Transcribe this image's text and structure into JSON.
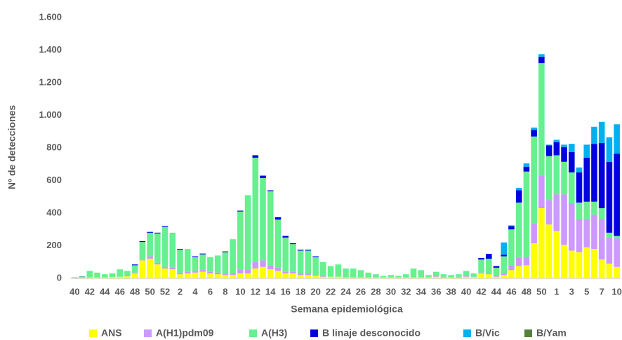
{
  "chart_data": {
    "type": "stacked_bar",
    "x_label": "Semana epidemiológica",
    "y_label": "Nº de detecciones",
    "categories": [
      "40",
      null,
      "42",
      null,
      "44",
      null,
      "46",
      null,
      "48",
      null,
      "50",
      null,
      "52",
      null,
      "2",
      null,
      "4",
      null,
      "6",
      null,
      "8",
      null,
      "10",
      null,
      "12",
      null,
      "14",
      null,
      "16",
      null,
      "18",
      null,
      "20",
      null,
      "22",
      null,
      "24",
      null,
      "26",
      null,
      "28",
      null,
      "30",
      null,
      "32",
      null,
      "34",
      null,
      "36",
      null,
      "38",
      null,
      "40",
      null,
      "42",
      null,
      "44",
      null,
      "46",
      null,
      "48",
      null,
      "50",
      null,
      "1",
      null,
      "3",
      null,
      "5",
      null,
      "7",
      null,
      "10"
    ],
    "series": [
      {
        "name": "ANS",
        "color": "#ffff00",
        "values": [
          2,
          3,
          5,
          5,
          5,
          8,
          10,
          12,
          30,
          110,
          120,
          85,
          60,
          55,
          25,
          30,
          35,
          40,
          30,
          25,
          20,
          20,
          30,
          30,
          60,
          70,
          55,
          45,
          30,
          30,
          20,
          20,
          15,
          10,
          10,
          10,
          5,
          5,
          5,
          5,
          5,
          5,
          5,
          5,
          5,
          5,
          5,
          5,
          10,
          5,
          5,
          5,
          10,
          8,
          30,
          25,
          10,
          20,
          50,
          75,
          80,
          215,
          430,
          330,
          290,
          205,
          170,
          160,
          190,
          180,
          115,
          90,
          70
        ]
      },
      {
        "name": "A(H1)pdm09",
        "color": "#cc99ff",
        "values": [
          0,
          0,
          0,
          0,
          0,
          0,
          0,
          0,
          5,
          5,
          15,
          10,
          10,
          10,
          10,
          10,
          10,
          15,
          10,
          10,
          10,
          10,
          25,
          25,
          40,
          40,
          25,
          20,
          10,
          10,
          10,
          10,
          5,
          5,
          0,
          0,
          0,
          0,
          0,
          0,
          0,
          0,
          0,
          0,
          0,
          0,
          0,
          0,
          5,
          5,
          0,
          5,
          5,
          2,
          5,
          5,
          5,
          10,
          30,
          50,
          50,
          120,
          200,
          150,
          225,
          310,
          290,
          205,
          175,
          210,
          250,
          160,
          175
        ]
      },
      {
        "name": "A(H3)",
        "color": "#66f08f",
        "values": [
          5,
          8,
          40,
          30,
          20,
          22,
          45,
          33,
          45,
          108,
          145,
          180,
          245,
          215,
          140,
          140,
          85,
          92,
          90,
          105,
          130,
          210,
          355,
          455,
          640,
          505,
          455,
          295,
          210,
          170,
          140,
          140,
          110,
          85,
          65,
          75,
          55,
          55,
          45,
          30,
          20,
          10,
          15,
          10,
          20,
          55,
          45,
          15,
          25,
          15,
          15,
          15,
          30,
          20,
          80,
          90,
          50,
          105,
          220,
          340,
          525,
          535,
          690,
          270,
          240,
          200,
          190,
          100,
          105,
          80,
          65,
          30,
          15
        ]
      },
      {
        "name": "B linaje desconocido",
        "color": "#0000e0",
        "values": [
          0,
          1,
          0,
          0,
          0,
          0,
          0,
          0,
          5,
          5,
          5,
          5,
          5,
          0,
          5,
          0,
          5,
          5,
          0,
          0,
          5,
          0,
          5,
          0,
          15,
          15,
          5,
          15,
          10,
          5,
          5,
          5,
          5,
          0,
          0,
          0,
          0,
          0,
          0,
          0,
          0,
          0,
          0,
          0,
          0,
          0,
          0,
          0,
          0,
          0,
          0,
          0,
          0,
          0,
          10,
          30,
          10,
          10,
          20,
          75,
          30,
          40,
          40,
          65,
          80,
          90,
          125,
          185,
          270,
          355,
          400,
          435,
          505
        ]
      },
      {
        "name": "B/Vic",
        "color": "#00b0f0",
        "values": [
          0,
          0,
          0,
          0,
          0,
          0,
          0,
          0,
          0,
          0,
          0,
          0,
          0,
          0,
          0,
          0,
          0,
          0,
          0,
          0,
          0,
          0,
          0,
          0,
          0,
          0,
          0,
          0,
          0,
          0,
          0,
          0,
          0,
          0,
          0,
          0,
          0,
          0,
          0,
          0,
          0,
          0,
          0,
          0,
          0,
          0,
          0,
          0,
          0,
          0,
          0,
          0,
          0,
          0,
          0,
          0,
          0,
          75,
          5,
          15,
          20,
          15,
          15,
          5,
          15,
          15,
          50,
          30,
          80,
          105,
          130,
          150,
          180
        ]
      },
      {
        "name": "B/Yam",
        "color": "#548235",
        "values": [
          0,
          0,
          0,
          0,
          0,
          0,
          0,
          0,
          0,
          0,
          0,
          0,
          0,
          0,
          0,
          0,
          0,
          0,
          0,
          0,
          0,
          0,
          0,
          0,
          0,
          0,
          0,
          0,
          0,
          0,
          0,
          0,
          0,
          0,
          0,
          0,
          0,
          0,
          0,
          0,
          0,
          0,
          0,
          0,
          0,
          0,
          0,
          0,
          0,
          0,
          0,
          0,
          0,
          0,
          0,
          0,
          0,
          0,
          0,
          0,
          0,
          0,
          0,
          0,
          0,
          0,
          0,
          0,
          0,
          0,
          0,
          0,
          0
        ]
      }
    ],
    "ylim": [
      0,
      1600
    ],
    "yticks": [
      0,
      200,
      400,
      600,
      800,
      {
        "value": 1000,
        "label": "1.000"
      },
      {
        "value": 1200,
        "label": "1.200"
      },
      {
        "value": 1400,
        "label": "1.400"
      },
      {
        "value": 1600,
        "label": "1.600"
      }
    ],
    "legend": "bottom"
  }
}
